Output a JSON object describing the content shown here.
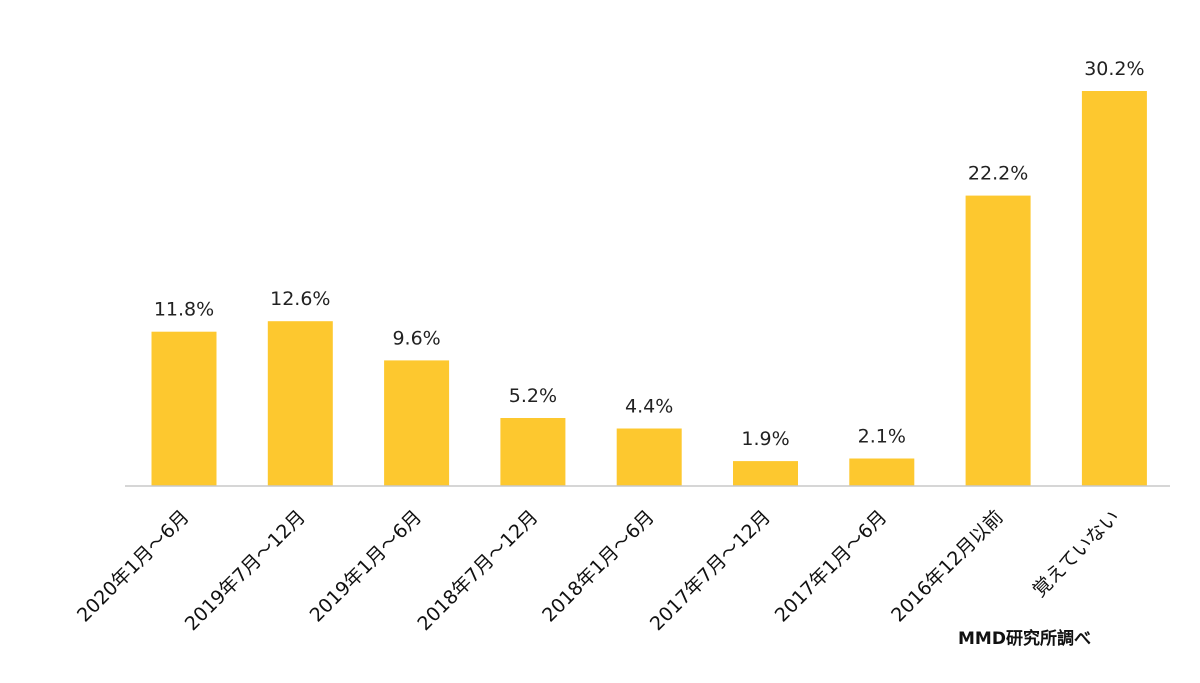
{
  "chart_data": {
    "type": "bar",
    "categories": [
      "2020年1月～6月",
      "2019年7月～12月",
      "2019年1月～6月",
      "2018年7月～12月",
      "2018年1月～6月",
      "2017年7月～12月",
      "2017年1月～6月",
      "2016年12月以前",
      "覚えていない"
    ],
    "values": [
      11.8,
      12.6,
      9.6,
      5.2,
      4.4,
      1.9,
      2.1,
      22.2,
      30.2
    ],
    "value_labels": [
      "11.8%",
      "12.6%",
      "9.6%",
      "5.2%",
      "4.4%",
      "1.9%",
      "2.1%",
      "22.2%",
      "30.2%"
    ],
    "ylim": [
      0,
      30.2
    ],
    "grid": false,
    "legend": "none",
    "colors": {
      "bar": "#FDC82F",
      "axis": "#c8c8c8"
    }
  },
  "source_note": "MMD研究所調べ"
}
